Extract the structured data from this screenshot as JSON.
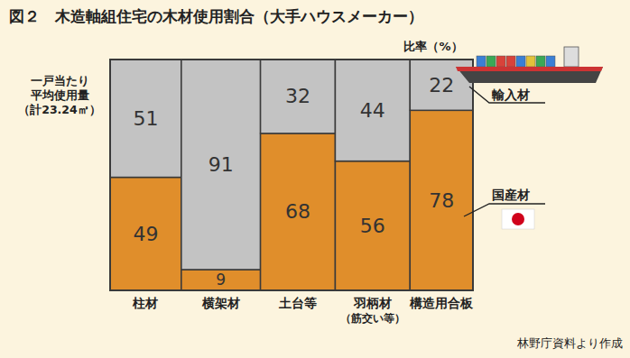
{
  "chart_data": {
    "type": "bar",
    "title": "図２　木造軸組住宅の木材使用割合（大手ハウスメーカー）",
    "y_label": "比率（%）",
    "side_note": [
      "一戸当たり",
      "平均使用量",
      "（計23.24㎥）"
    ],
    "source": "林野庁資料より作成",
    "categories": [
      "柱材",
      "横架材",
      "土台等",
      "羽柄材\n（筋交い等）",
      "構造用合板"
    ],
    "widths": [
      4.56,
      5.07,
      4.79,
      4.79,
      4.03
    ],
    "series": [
      {
        "name": "国産材",
        "color": "#e08e2b",
        "values": [
          49,
          9,
          68,
          56,
          78
        ]
      },
      {
        "name": "輸入材",
        "color": "#c3c3c3",
        "values": [
          51,
          91,
          32,
          44,
          22
        ]
      }
    ],
    "ylim": [
      0,
      100
    ],
    "stacked": true,
    "data_labels": true,
    "tick_labels": false,
    "legend": "right"
  }
}
